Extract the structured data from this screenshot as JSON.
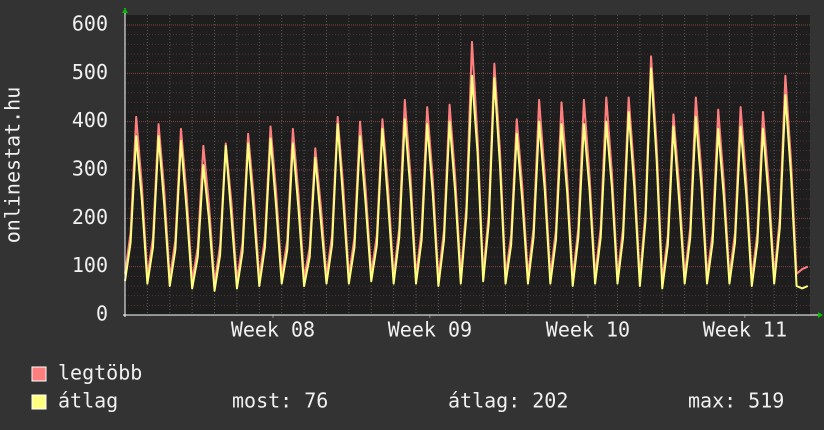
{
  "chart_data": {
    "type": "line",
    "y_label": "onlinestat.hu",
    "x": [
      0,
      0.25,
      0.5,
      0.75,
      1,
      1.25,
      1.5,
      1.75,
      2,
      2.25,
      2.5,
      2.75,
      3,
      3.25,
      3.5,
      3.75,
      4,
      4.25,
      4.5,
      4.75,
      5,
      5.25,
      5.5,
      5.75,
      6,
      6.25,
      6.5,
      6.75,
      7,
      7.25,
      7.5,
      7.75,
      8,
      8.25,
      8.5,
      8.75,
      9,
      9.25,
      9.5,
      9.75,
      10,
      10.25,
      10.5,
      10.75,
      11,
      11.25,
      11.5,
      11.75,
      12,
      12.25,
      12.5,
      12.75,
      13,
      13.25,
      13.5,
      13.75,
      14,
      14.25,
      14.5,
      14.75,
      15,
      15.25,
      15.5,
      15.75,
      16,
      16.25,
      16.5,
      16.75,
      17,
      17.25,
      17.5,
      17.75,
      18,
      18.25,
      18.5,
      18.75,
      19,
      19.25,
      19.5,
      19.75,
      20,
      20.25,
      20.5,
      20.75,
      21,
      21.25,
      21.5,
      21.75,
      22,
      22.25,
      22.5,
      22.75,
      23,
      23.25,
      23.5,
      23.75,
      24,
      24.25,
      24.5,
      24.75,
      25,
      25.25,
      25.5,
      25.75,
      26,
      26.25,
      26.5,
      26.75,
      27,
      27.25,
      27.5,
      27.75,
      28,
      28.25,
      28.5,
      28.75,
      29,
      29.25,
      29.5,
      29.75,
      30,
      30.25,
      30.5
    ],
    "series": [
      {
        "name": "legtöbb",
        "color": "#ff7f7f",
        "values": [
          85,
          170,
          410,
          270,
          80,
          160,
          395,
          260,
          75,
          155,
          385,
          250,
          70,
          140,
          350,
          230,
          65,
          145,
          355,
          235,
          70,
          150,
          375,
          245,
          75,
          160,
          390,
          255,
          80,
          155,
          385,
          250,
          75,
          140,
          345,
          225,
          80,
          165,
          410,
          265,
          80,
          160,
          400,
          260,
          85,
          165,
          405,
          265,
          80,
          180,
          445,
          290,
          80,
          175,
          430,
          280,
          75,
          175,
          435,
          285,
          80,
          225,
          565,
          365,
          85,
          210,
          520,
          340,
          80,
          165,
          405,
          265,
          80,
          180,
          445,
          290,
          80,
          175,
          440,
          285,
          75,
          180,
          445,
          290,
          80,
          180,
          450,
          295,
          80,
          180,
          450,
          295,
          75,
          215,
          535,
          350,
          70,
          165,
          415,
          270,
          80,
          180,
          450,
          295,
          80,
          170,
          425,
          275,
          80,
          170,
          430,
          280,
          75,
          170,
          420,
          275,
          80,
          200,
          495,
          320,
          85,
          95,
          100
        ]
      },
      {
        "name": "átlag",
        "color": "#ffff80",
        "values": [
          70,
          150,
          370,
          240,
          65,
          140,
          370,
          230,
          60,
          135,
          360,
          220,
          55,
          120,
          310,
          200,
          50,
          125,
          350,
          205,
          55,
          130,
          355,
          215,
          60,
          140,
          365,
          225,
          65,
          135,
          355,
          220,
          60,
          120,
          325,
          195,
          65,
          145,
          395,
          235,
          65,
          140,
          370,
          230,
          70,
          145,
          385,
          235,
          65,
          160,
          405,
          260,
          65,
          155,
          395,
          250,
          60,
          155,
          400,
          255,
          65,
          205,
          495,
          335,
          70,
          190,
          490,
          310,
          65,
          145,
          375,
          235,
          65,
          160,
          400,
          260,
          65,
          155,
          395,
          255,
          60,
          160,
          395,
          260,
          65,
          160,
          400,
          265,
          65,
          160,
          420,
          265,
          60,
          195,
          510,
          320,
          55,
          145,
          390,
          240,
          65,
          160,
          410,
          265,
          65,
          150,
          385,
          245,
          65,
          150,
          390,
          250,
          60,
          150,
          385,
          245,
          65,
          180,
          455,
          290,
          60,
          55,
          60
        ]
      }
    ],
    "xlim": [
      0,
      30.6
    ],
    "xticks": [
      {
        "value": 6.61,
        "label": "Week 08"
      },
      {
        "value": 13.62,
        "label": "Week 09"
      },
      {
        "value": 20.68,
        "label": "Week 10"
      },
      {
        "value": 27.69,
        "label": "Week 11"
      }
    ],
    "ylim": [
      0,
      600
    ],
    "yticks": [
      0,
      100,
      200,
      300,
      400,
      500,
      600
    ],
    "grid": true,
    "stats": [
      {
        "label": "most:",
        "value": 76
      },
      {
        "label": "átlag:",
        "value": 202
      },
      {
        "label": "max:",
        "value": 519
      }
    ]
  }
}
